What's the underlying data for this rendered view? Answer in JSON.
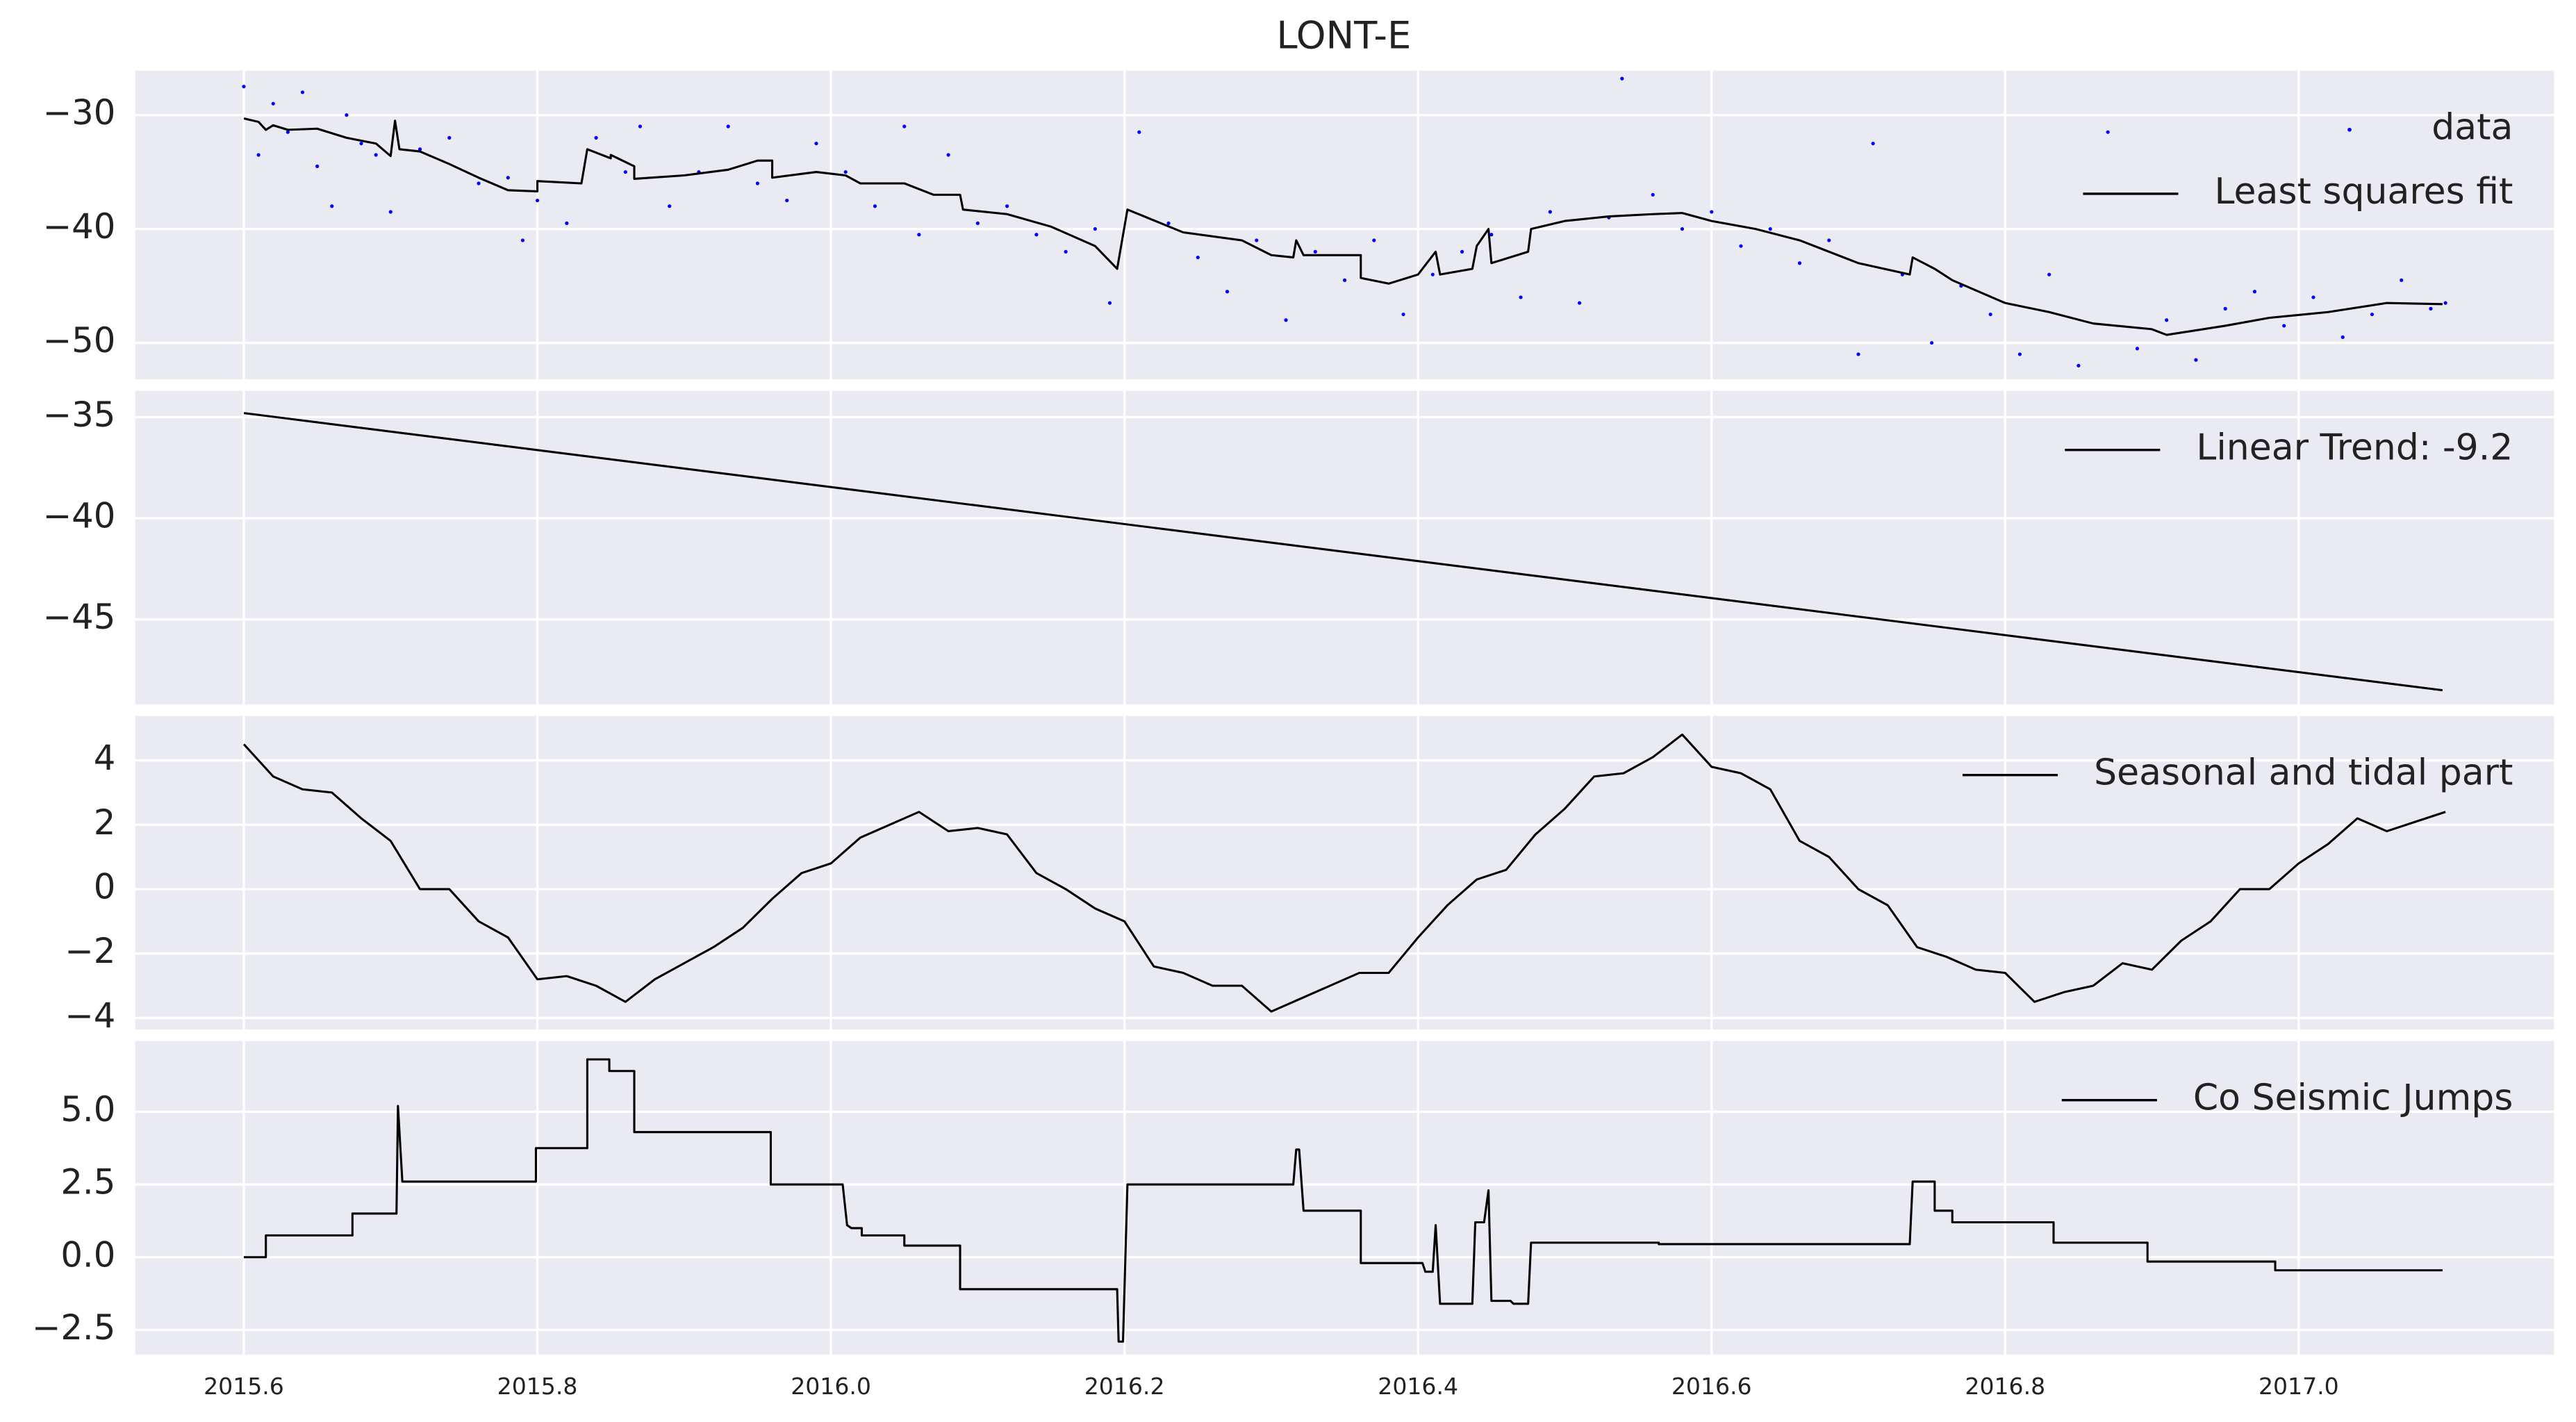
{
  "chart_data": [
    {
      "type": "line",
      "title": "LONT-E",
      "xlim": [
        2015.526,
        2017.174
      ],
      "ylim": [
        -53.2,
        -26.1
      ],
      "grid": true,
      "legend": "upper right",
      "yticks": [
        {
          "value": -30,
          "label": "−30"
        },
        {
          "value": -40,
          "label": "−40"
        },
        {
          "value": -50,
          "label": "−50"
        }
      ],
      "series": [
        {
          "name": "data",
          "color": "#0000ff",
          "marker": "dot",
          "x": [
            2015.6,
            2015.61,
            2015.62,
            2015.63,
            2015.64,
            2015.65,
            2015.66,
            2015.67,
            2015.68,
            2015.69,
            2015.7,
            2015.72,
            2015.74,
            2015.76,
            2015.78,
            2015.79,
            2015.8,
            2015.82,
            2015.84,
            2015.86,
            2015.87,
            2015.89,
            2015.91,
            2015.93,
            2015.95,
            2015.97,
            2015.99,
            2016.01,
            2016.03,
            2016.05,
            2016.06,
            2016.08,
            2016.1,
            2016.12,
            2016.14,
            2016.16,
            2016.18,
            2016.19,
            2016.21,
            2016.23,
            2016.25,
            2016.27,
            2016.29,
            2016.31,
            2016.33,
            2016.35,
            2016.37,
            2016.39,
            2016.41,
            2016.43,
            2016.45,
            2016.47,
            2016.49,
            2016.51,
            2016.53,
            2016.539,
            2016.56,
            2016.58,
            2016.6,
            2016.62,
            2016.64,
            2016.66,
            2016.68,
            2016.7,
            2016.71,
            2016.73,
            2016.75,
            2016.77,
            2016.79,
            2016.81,
            2016.83,
            2016.85,
            2016.87,
            2016.89,
            2016.91,
            2016.93,
            2016.95,
            2016.97,
            2016.99,
            2017.01,
            2017.03,
            2017.05,
            2017.07,
            2017.09,
            2017.1
          ],
          "values": [
            -27.5,
            -33.5,
            -29,
            -31.5,
            -28,
            -34.5,
            -38,
            -30,
            -32.5,
            -33.5,
            -38.5,
            -33,
            -32,
            -36,
            -35.5,
            -41,
            -37.5,
            -39.5,
            -32,
            -35,
            -31,
            -38,
            -35,
            -31,
            -36,
            -37.5,
            -32.5,
            -35,
            -38,
            -31,
            -40.5,
            -33.5,
            -39.5,
            -38,
            -40.5,
            -42,
            -40,
            -46.5,
            -31.5,
            -39.5,
            -42.5,
            -45.5,
            -41,
            -48,
            -42,
            -44.5,
            -41,
            -47.5,
            -44,
            -42,
            -40.5,
            -46,
            -38.5,
            -46.5,
            -39,
            -26.8,
            -37,
            -40,
            -38.5,
            -41.5,
            -40,
            -43,
            -41,
            -51,
            -32.5,
            -44,
            -50,
            -45,
            -47.5,
            -51,
            -44,
            -52,
            -31.5,
            -50.5,
            -48,
            -51.5,
            -47,
            -45.5,
            -48.5,
            -46,
            -49.5,
            -47.5,
            -44.5,
            -47,
            -46.5
          ]
        },
        {
          "name": "Least squares fit",
          "color": "#000000",
          "x": [
            2015.6,
            2015.61,
            2015.615,
            2015.62,
            2015.63,
            2015.65,
            2015.67,
            2015.69,
            2015.7,
            2015.703,
            2015.706,
            2015.72,
            2015.74,
            2015.76,
            2015.78,
            2015.8,
            2015.8,
            2015.83,
            2015.834,
            2015.85,
            2015.85,
            2015.866,
            2015.866,
            2015.9,
            2015.93,
            2015.95,
            2015.96,
            2015.96,
            2015.99,
            2016.01,
            2016.02,
            2016.05,
            2016.07,
            2016.088,
            2016.09,
            2016.12,
            2016.15,
            2016.18,
            2016.195,
            2016.202,
            2016.24,
            2016.28,
            2016.3,
            2016.315,
            2016.317,
            2016.322,
            2016.361,
            2016.361,
            2016.38,
            2016.4,
            2016.412,
            2016.415,
            2016.437,
            2016.44,
            2016.448,
            2016.45,
            2016.475,
            2016.477,
            2016.5,
            2016.53,
            2016.56,
            2016.58,
            2016.6,
            2016.63,
            2016.66,
            2016.7,
            2016.735,
            2016.737,
            2016.752,
            2016.764,
            2016.8,
            2016.83,
            2016.86,
            2016.9,
            2016.91,
            2016.95,
            2016.98,
            2017.02,
            2017.06,
            2017.098
          ],
          "values": [
            -30.3,
            -30.6,
            -31.3,
            -30.9,
            -31.3,
            -31.2,
            -32,
            -32.5,
            -33.6,
            -30.5,
            -33,
            -33.2,
            -34.3,
            -35.5,
            -36.6,
            -36.7,
            -35.8,
            -36,
            -33,
            -33.8,
            -33.5,
            -34.5,
            -35.6,
            -35.3,
            -34.8,
            -34,
            -34,
            -35.5,
            -35,
            -35.3,
            -36,
            -36,
            -37,
            -37,
            -38.3,
            -38.7,
            -39.8,
            -41.5,
            -43.5,
            -38.3,
            -40.3,
            -41,
            -42.3,
            -42.5,
            -41,
            -42.3,
            -42.3,
            -44.3,
            -44.8,
            -44,
            -42,
            -44,
            -43.5,
            -41.5,
            -40,
            -43,
            -42,
            -40,
            -39.3,
            -38.9,
            -38.7,
            -38.6,
            -39.3,
            -40,
            -41,
            -43,
            -44,
            -42.5,
            -43.5,
            -44.5,
            -46.5,
            -47.3,
            -48.3,
            -48.8,
            -49.3,
            -48.5,
            -47.8,
            -47.3,
            -46.5,
            -46.6
          ]
        }
      ]
    },
    {
      "type": "line",
      "xlim": [
        2015.526,
        2017.174
      ],
      "ylim": [
        -49.2,
        -33.7
      ],
      "grid": true,
      "legend": "upper right",
      "yticks": [
        {
          "value": -35,
          "label": "−35"
        },
        {
          "value": -40,
          "label": "−40"
        },
        {
          "value": -45,
          "label": "−45"
        }
      ],
      "series": [
        {
          "name": "Linear Trend: -9.2",
          "color": "#000000",
          "x": [
            2015.6,
            2017.098
          ],
          "values": [
            -34.8,
            -48.5
          ]
        }
      ]
    },
    {
      "type": "line",
      "xlim": [
        2015.526,
        2017.174
      ],
      "ylim": [
        -4.36,
        5.38
      ],
      "grid": true,
      "legend": "upper right",
      "yticks": [
        4,
        2,
        0,
        {
          "value": -2,
          "label": "−2"
        },
        {
          "value": -4,
          "label": "−4"
        }
      ],
      "series": [
        {
          "name": "Seasonal and tidal part",
          "color": "#000000",
          "x": [
            2015.6,
            2015.62,
            2015.64,
            2015.66,
            2015.68,
            2015.7,
            2015.72,
            2015.74,
            2015.76,
            2015.78,
            2015.8,
            2015.82,
            2015.84,
            2015.86,
            2015.88,
            2015.9,
            2015.92,
            2015.94,
            2015.96,
            2015.98,
            2016.0,
            2016.02,
            2016.04,
            2016.06,
            2016.08,
            2016.1,
            2016.12,
            2016.14,
            2016.16,
            2016.18,
            2016.2,
            2016.22,
            2016.24,
            2016.26,
            2016.28,
            2016.3,
            2016.32,
            2016.34,
            2016.36,
            2016.38,
            2016.4,
            2016.42,
            2016.44,
            2016.46,
            2016.48,
            2016.5,
            2016.52,
            2016.54,
            2016.56,
            2016.58,
            2016.6,
            2016.62,
            2016.64,
            2016.66,
            2016.68,
            2016.7,
            2016.72,
            2016.74,
            2016.76,
            2016.78,
            2016.8,
            2016.82,
            2016.84,
            2016.86,
            2016.88,
            2016.9,
            2016.92,
            2016.94,
            2016.96,
            2016.98,
            2017.0,
            2017.02,
            2017.04,
            2017.06,
            2017.08,
            2017.1
          ],
          "values": [
            4.5,
            3.5,
            3.1,
            3.0,
            2.2,
            1.5,
            0.0,
            0.0,
            -1.0,
            -1.5,
            -2.8,
            -2.7,
            -3.0,
            -3.5,
            -2.8,
            -2.3,
            -1.8,
            -1.2,
            -0.3,
            0.5,
            0.8,
            1.6,
            2.0,
            2.4,
            1.8,
            1.9,
            1.7,
            0.5,
            0.0,
            -0.6,
            -1.0,
            -2.4,
            -2.6,
            -3.0,
            -3.0,
            -3.8,
            -3.4,
            -3.0,
            -2.6,
            -2.6,
            -1.5,
            -0.5,
            0.3,
            0.6,
            1.7,
            2.5,
            3.5,
            3.6,
            4.1,
            4.8,
            3.8,
            3.6,
            3.1,
            1.5,
            1.0,
            0.0,
            -0.5,
            -1.8,
            -2.1,
            -2.5,
            -2.6,
            -3.5,
            -3.2,
            -3.0,
            -2.3,
            -2.5,
            -1.6,
            -1.0,
            0.0,
            0.0,
            0.8,
            1.4,
            2.2,
            1.8,
            2.1,
            2.4
          ]
        }
      ]
    },
    {
      "type": "line",
      "xlim": [
        2015.526,
        2017.174
      ],
      "ylim": [
        -3.35,
        7.43
      ],
      "grid": true,
      "legend": "upper right",
      "yticks": [
        {
          "value": 5,
          "label": "5.0"
        },
        2.5,
        {
          "value": 0,
          "label": "0.0"
        },
        {
          "value": -2.5,
          "label": "−2.5"
        }
      ],
      "xticks": [
        2015.6,
        2015.8,
        {
          "value": 2016,
          "label": "2016.0"
        },
        2016.2,
        2016.4,
        2016.6,
        2016.8,
        {
          "value": 2017,
          "label": "2017.0"
        }
      ],
      "series": [
        {
          "name": "Co Seismic Jumps",
          "color": "#000000",
          "x": [
            2015.6,
            2015.615,
            2015.615,
            2015.674,
            2015.674,
            2015.704,
            2015.705,
            2015.708,
            2015.799,
            2015.799,
            2015.834,
            2015.834,
            2015.849,
            2015.849,
            2015.866,
            2015.866,
            2015.959,
            2015.959,
            2016.008,
            2016.011,
            2016.014,
            2016.021,
            2016.021,
            2016.05,
            2016.05,
            2016.088,
            2016.088,
            2016.195,
            2016.196,
            2016.199,
            2016.202,
            2016.315,
            2016.317,
            2016.319,
            2016.322,
            2016.361,
            2016.361,
            2016.403,
            2016.405,
            2016.41,
            2016.412,
            2016.415,
            2016.437,
            2016.439,
            2016.445,
            2016.448,
            2016.45,
            2016.463,
            2016.465,
            2016.475,
            2016.477,
            2016.564,
            2016.564,
            2016.735,
            2016.737,
            2016.752,
            2016.752,
            2016.764,
            2016.764,
            2016.833,
            2016.833,
            2016.897,
            2016.897,
            2016.984,
            2016.984,
            2017.098
          ],
          "values": [
            0,
            0,
            0.75,
            0.75,
            1.5,
            1.5,
            5.2,
            2.6,
            2.6,
            3.75,
            3.75,
            6.8,
            6.8,
            6.4,
            6.4,
            4.3,
            4.3,
            2.5,
            2.5,
            1.1,
            1.0,
            1.0,
            0.75,
            0.75,
            0.4,
            0.4,
            -1.1,
            -1.1,
            -2.9,
            -2.9,
            2.5,
            2.5,
            3.7,
            3.7,
            1.6,
            1.6,
            -0.2,
            -0.2,
            -0.5,
            -0.5,
            1.1,
            -1.6,
            -1.6,
            1.2,
            1.2,
            2.3,
            -1.5,
            -1.5,
            -1.6,
            -1.6,
            0.5,
            0.5,
            0.45,
            0.45,
            2.6,
            2.6,
            1.6,
            1.6,
            1.2,
            1.2,
            0.5,
            0.5,
            -0.15,
            -0.15,
            -0.45,
            -0.45
          ]
        }
      ]
    }
  ]
}
